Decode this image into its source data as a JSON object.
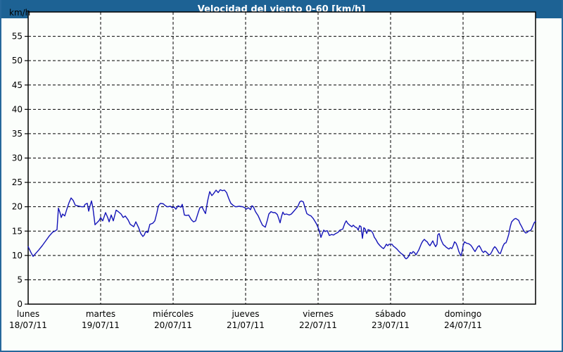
{
  "window": {
    "title": "Velocidad del viento 0-60 [km/h]"
  },
  "colors": {
    "titlebar_bg": "#1d6294",
    "title_text": "#ffffff",
    "frame_border": "#26689b",
    "background": "#fbfefb",
    "plot_border": "#000000",
    "grid": "#000000",
    "axis_text": "#000000",
    "line": "#1414b8"
  },
  "chart_data": {
    "type": "line",
    "title": "Velocidad del viento 0-60 [km/h]",
    "ylabel": "km/h",
    "xlabel": "",
    "ylim": [
      0,
      60
    ],
    "yticks": [
      0,
      5,
      10,
      15,
      20,
      25,
      30,
      35,
      40,
      45,
      50,
      55
    ],
    "grid": "dashed",
    "legend": "none",
    "x_axis_days": [
      {
        "name": "lunes",
        "date": "18/07/11"
      },
      {
        "name": "martes",
        "date": "19/07/11"
      },
      {
        "name": "miércoles",
        "date": "20/07/11"
      },
      {
        "name": "jueves",
        "date": "21/07/11"
      },
      {
        "name": "viernes",
        "date": "22/07/11"
      },
      {
        "name": "sábado",
        "date": "23/07/11"
      },
      {
        "name": "domingo",
        "date": "24/07/11"
      }
    ],
    "series": [
      {
        "name": "Velocidad del viento [km/h]",
        "x_unit": "days_since_2011-07-18",
        "points": [
          [
            0.0,
            11.8
          ],
          [
            0.039,
            10.6
          ],
          [
            0.068,
            9.8
          ],
          [
            0.097,
            10.3
          ],
          [
            0.146,
            11.1
          ],
          [
            0.194,
            12.0
          ],
          [
            0.243,
            13.0
          ],
          [
            0.291,
            14.0
          ],
          [
            0.34,
            14.8
          ],
          [
            0.369,
            15.0
          ],
          [
            0.398,
            15.3
          ],
          [
            0.417,
            19.7
          ],
          [
            0.437,
            18.9
          ],
          [
            0.456,
            17.8
          ],
          [
            0.476,
            18.5
          ],
          [
            0.505,
            18.1
          ],
          [
            0.534,
            19.5
          ],
          [
            0.563,
            20.8
          ],
          [
            0.592,
            21.8
          ],
          [
            0.621,
            21.3
          ],
          [
            0.65,
            20.3
          ],
          [
            0.68,
            20.2
          ],
          [
            0.709,
            20.1
          ],
          [
            0.738,
            20.0
          ],
          [
            0.767,
            20.0
          ],
          [
            0.786,
            20.5
          ],
          [
            0.816,
            20.7
          ],
          [
            0.835,
            19.1
          ],
          [
            0.854,
            20.2
          ],
          [
            0.874,
            21.2
          ],
          [
            0.893,
            19.8
          ],
          [
            0.913,
            17.5
          ],
          [
            0.922,
            16.3
          ],
          [
            0.942,
            16.6
          ],
          [
            0.961,
            16.9
          ],
          [
            0.981,
            17.2
          ],
          [
            1.0,
            17.8
          ],
          [
            1.029,
            17.1
          ],
          [
            1.068,
            18.8
          ],
          [
            1.097,
            17.8
          ],
          [
            1.117,
            16.9
          ],
          [
            1.146,
            18.3
          ],
          [
            1.175,
            17.1
          ],
          [
            1.214,
            19.3
          ],
          [
            1.243,
            19.0
          ],
          [
            1.282,
            18.5
          ],
          [
            1.311,
            17.8
          ],
          [
            1.34,
            18.1
          ],
          [
            1.379,
            17.3
          ],
          [
            1.408,
            16.4
          ],
          [
            1.456,
            15.9
          ],
          [
            1.485,
            16.9
          ],
          [
            1.524,
            15.7
          ],
          [
            1.553,
            14.5
          ],
          [
            1.583,
            13.9
          ],
          [
            1.602,
            14.2
          ],
          [
            1.621,
            14.9
          ],
          [
            1.65,
            14.7
          ],
          [
            1.68,
            16.4
          ],
          [
            1.718,
            16.6
          ],
          [
            1.748,
            17.1
          ],
          [
            1.777,
            18.8
          ],
          [
            1.796,
            20.2
          ],
          [
            1.825,
            20.7
          ],
          [
            1.864,
            20.6
          ],
          [
            1.893,
            20.2
          ],
          [
            1.922,
            20.0
          ],
          [
            1.961,
            20.1
          ],
          [
            1.99,
            19.8
          ],
          [
            2.01,
            20.0
          ],
          [
            2.039,
            19.5
          ],
          [
            2.068,
            20.2
          ],
          [
            2.107,
            19.9
          ],
          [
            2.126,
            20.5
          ],
          [
            2.155,
            18.3
          ],
          [
            2.184,
            18.2
          ],
          [
            2.214,
            18.3
          ],
          [
            2.252,
            17.3
          ],
          [
            2.282,
            16.9
          ],
          [
            2.311,
            17.1
          ],
          [
            2.35,
            19.0
          ],
          [
            2.369,
            19.8
          ],
          [
            2.398,
            20.0
          ],
          [
            2.417,
            19.4
          ],
          [
            2.447,
            18.6
          ],
          [
            2.476,
            21.2
          ],
          [
            2.505,
            23.1
          ],
          [
            2.534,
            22.3
          ],
          [
            2.553,
            22.6
          ],
          [
            2.592,
            23.4
          ],
          [
            2.621,
            22.9
          ],
          [
            2.65,
            23.5
          ],
          [
            2.68,
            23.3
          ],
          [
            2.709,
            23.4
          ],
          [
            2.738,
            22.9
          ],
          [
            2.767,
            21.7
          ],
          [
            2.796,
            20.7
          ],
          [
            2.835,
            20.2
          ],
          [
            2.864,
            20.0
          ],
          [
            2.913,
            20.1
          ],
          [
            2.961,
            20.0
          ],
          [
            2.99,
            19.8
          ],
          [
            3.01,
            19.5
          ],
          [
            3.039,
            19.8
          ],
          [
            3.068,
            19.4
          ],
          [
            3.087,
            20.2
          ],
          [
            3.107,
            20.0
          ],
          [
            3.136,
            19.0
          ],
          [
            3.175,
            18.1
          ],
          [
            3.204,
            17.1
          ],
          [
            3.233,
            16.2
          ],
          [
            3.272,
            15.8
          ],
          [
            3.301,
            17.3
          ],
          [
            3.32,
            18.5
          ],
          [
            3.35,
            19.0
          ],
          [
            3.379,
            18.8
          ],
          [
            3.408,
            18.8
          ],
          [
            3.437,
            18.4
          ],
          [
            3.456,
            17.6
          ],
          [
            3.476,
            16.7
          ],
          [
            3.495,
            18.0
          ],
          [
            3.515,
            18.9
          ],
          [
            3.534,
            18.4
          ],
          [
            3.563,
            18.5
          ],
          [
            3.602,
            18.3
          ],
          [
            3.631,
            18.5
          ],
          [
            3.66,
            19.0
          ],
          [
            3.689,
            19.5
          ],
          [
            3.718,
            20.0
          ],
          [
            3.748,
            21.0
          ],
          [
            3.767,
            21.2
          ],
          [
            3.796,
            21.0
          ],
          [
            3.816,
            20.0
          ],
          [
            3.845,
            18.6
          ],
          [
            3.874,
            18.3
          ],
          [
            3.903,
            18.1
          ],
          [
            3.932,
            17.6
          ],
          [
            3.961,
            16.9
          ],
          [
            3.981,
            16.4
          ],
          [
            4.0,
            15.7
          ],
          [
            4.019,
            14.9
          ],
          [
            4.039,
            13.7
          ],
          [
            4.058,
            14.5
          ],
          [
            4.078,
            15.2
          ],
          [
            4.097,
            14.9
          ],
          [
            4.126,
            15.1
          ],
          [
            4.155,
            14.1
          ],
          [
            4.184,
            14.3
          ],
          [
            4.214,
            14.2
          ],
          [
            4.243,
            14.5
          ],
          [
            4.272,
            14.7
          ],
          [
            4.301,
            15.2
          ],
          [
            4.34,
            15.4
          ],
          [
            4.369,
            16.6
          ],
          [
            4.388,
            17.1
          ],
          [
            4.408,
            16.6
          ],
          [
            4.437,
            16.2
          ],
          [
            4.466,
            15.9
          ],
          [
            4.485,
            16.2
          ],
          [
            4.515,
            15.8
          ],
          [
            4.534,
            15.7
          ],
          [
            4.553,
            15.2
          ],
          [
            4.573,
            16.1
          ],
          [
            4.592,
            15.9
          ],
          [
            4.612,
            13.5
          ],
          [
            4.631,
            15.7
          ],
          [
            4.65,
            15.4
          ],
          [
            4.67,
            14.5
          ],
          [
            4.689,
            15.3
          ],
          [
            4.709,
            15.2
          ],
          [
            4.738,
            15.0
          ],
          [
            4.757,
            14.5
          ],
          [
            4.777,
            13.7
          ],
          [
            4.796,
            13.3
          ],
          [
            4.825,
            12.5
          ],
          [
            4.854,
            12.0
          ],
          [
            4.883,
            11.6
          ],
          [
            4.903,
            11.4
          ],
          [
            4.922,
            11.8
          ],
          [
            4.942,
            12.3
          ],
          [
            4.961,
            12.0
          ],
          [
            4.981,
            12.3
          ],
          [
            5.019,
            12.3
          ],
          [
            5.039,
            11.9
          ],
          [
            5.058,
            11.7
          ],
          [
            5.087,
            11.3
          ],
          [
            5.117,
            10.8
          ],
          [
            5.146,
            10.4
          ],
          [
            5.175,
            10.1
          ],
          [
            5.194,
            9.6
          ],
          [
            5.214,
            9.3
          ],
          [
            5.233,
            9.5
          ],
          [
            5.252,
            9.9
          ],
          [
            5.272,
            10.6
          ],
          [
            5.291,
            10.4
          ],
          [
            5.311,
            10.8
          ],
          [
            5.33,
            10.6
          ],
          [
            5.35,
            10.1
          ],
          [
            5.369,
            10.6
          ],
          [
            5.388,
            11.1
          ],
          [
            5.408,
            11.8
          ],
          [
            5.427,
            12.5
          ],
          [
            5.447,
            13.0
          ],
          [
            5.466,
            13.3
          ],
          [
            5.485,
            13.0
          ],
          [
            5.505,
            12.8
          ],
          [
            5.524,
            12.3
          ],
          [
            5.544,
            12.0
          ],
          [
            5.563,
            12.5
          ],
          [
            5.583,
            13.0
          ],
          [
            5.602,
            12.3
          ],
          [
            5.621,
            11.8
          ],
          [
            5.641,
            12.3
          ],
          [
            5.65,
            14.2
          ],
          [
            5.67,
            14.5
          ],
          [
            5.689,
            13.5
          ],
          [
            5.709,
            12.8
          ],
          [
            5.728,
            12.2
          ],
          [
            5.748,
            12.0
          ],
          [
            5.767,
            11.7
          ],
          [
            5.786,
            11.5
          ],
          [
            5.806,
            11.3
          ],
          [
            5.825,
            11.6
          ],
          [
            5.845,
            11.4
          ],
          [
            5.864,
            12.0
          ],
          [
            5.883,
            12.8
          ],
          [
            5.903,
            12.5
          ],
          [
            5.922,
            11.8
          ],
          [
            5.942,
            10.8
          ],
          [
            5.961,
            10.2
          ],
          [
            5.971,
            9.9
          ],
          [
            5.99,
            11.0
          ],
          [
            6.0,
            12.0
          ],
          [
            6.019,
            12.8
          ],
          [
            6.049,
            12.5
          ],
          [
            6.078,
            12.4
          ],
          [
            6.107,
            12.1
          ],
          [
            6.126,
            11.7
          ],
          [
            6.146,
            11.2
          ],
          [
            6.165,
            10.8
          ],
          [
            6.184,
            11.3
          ],
          [
            6.204,
            11.8
          ],
          [
            6.223,
            12.0
          ],
          [
            6.243,
            11.5
          ],
          [
            6.262,
            10.9
          ],
          [
            6.282,
            10.6
          ],
          [
            6.301,
            10.9
          ],
          [
            6.32,
            10.7
          ],
          [
            6.34,
            10.4
          ],
          [
            6.359,
            10.1
          ],
          [
            6.379,
            10.3
          ],
          [
            6.398,
            10.8
          ],
          [
            6.417,
            11.4
          ],
          [
            6.437,
            11.8
          ],
          [
            6.456,
            11.5
          ],
          [
            6.476,
            11.0
          ],
          [
            6.495,
            10.5
          ],
          [
            6.515,
            10.4
          ],
          [
            6.534,
            11.2
          ],
          [
            6.553,
            12.0
          ],
          [
            6.573,
            12.5
          ],
          [
            6.592,
            12.6
          ],
          [
            6.612,
            13.4
          ],
          [
            6.631,
            14.4
          ],
          [
            6.65,
            15.9
          ],
          [
            6.67,
            16.9
          ],
          [
            6.689,
            17.2
          ],
          [
            6.709,
            17.5
          ],
          [
            6.728,
            17.6
          ],
          [
            6.748,
            17.4
          ],
          [
            6.767,
            17.2
          ],
          [
            6.786,
            16.5
          ],
          [
            6.806,
            16.0
          ],
          [
            6.825,
            15.4
          ],
          [
            6.845,
            14.9
          ],
          [
            6.864,
            14.6
          ],
          [
            6.883,
            14.7
          ],
          [
            6.903,
            15.0
          ],
          [
            6.922,
            15.1
          ],
          [
            6.942,
            15.3
          ],
          [
            6.961,
            16.0
          ],
          [
            6.981,
            16.7
          ],
          [
            7.0,
            17.0
          ]
        ]
      }
    ]
  }
}
